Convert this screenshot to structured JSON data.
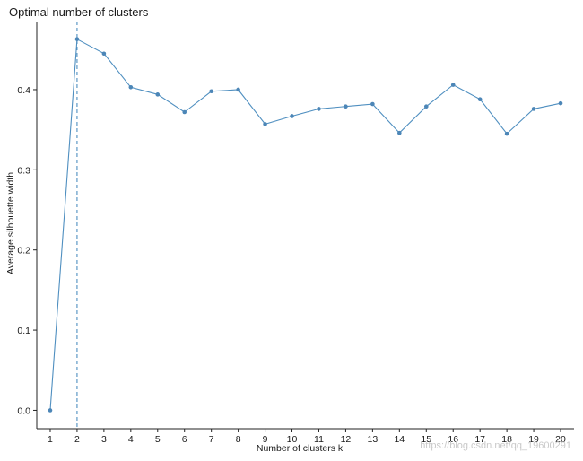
{
  "chart_data": {
    "type": "line",
    "title": "Optimal number of clusters",
    "xlabel": "Number of clusters k",
    "ylabel": "Average silhouette width",
    "x": [
      1,
      2,
      3,
      4,
      5,
      6,
      7,
      8,
      9,
      10,
      11,
      12,
      13,
      14,
      15,
      16,
      17,
      18,
      19,
      20
    ],
    "x_tick_labels": [
      "1",
      "2",
      "3",
      "4",
      "5",
      "6",
      "7",
      "8",
      "9",
      "10",
      "11",
      "12",
      "13",
      "14",
      "15",
      "16",
      "17",
      "18",
      "19",
      "20"
    ],
    "values": [
      0.0,
      0.463,
      0.445,
      0.403,
      0.394,
      0.372,
      0.398,
      0.4,
      0.357,
      0.367,
      0.376,
      0.379,
      0.382,
      0.346,
      0.379,
      0.406,
      0.388,
      0.345,
      0.376,
      0.383
    ],
    "y_ticks": [
      0.0,
      0.1,
      0.2,
      0.3,
      0.4
    ],
    "y_tick_labels": [
      "0.0",
      "0.1",
      "0.2",
      "0.3",
      "0.4"
    ],
    "ylim": [
      -0.023,
      0.485
    ],
    "xlim": [
      0.5,
      20.5
    ],
    "optimal_k": 2,
    "grid": false,
    "line_color": "#4f8fc0",
    "point_color": "#4c86b7"
  },
  "watermark": "https://blog.csdn.net/qq_19600291"
}
